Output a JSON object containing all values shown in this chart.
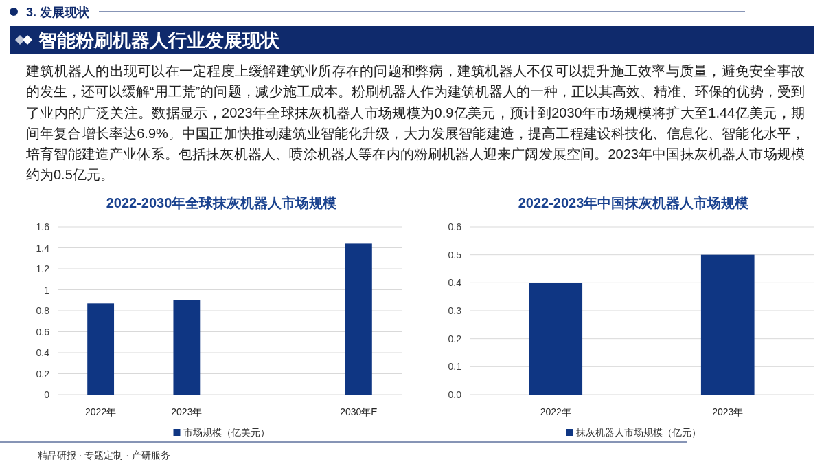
{
  "chart_data": [
    {
      "type": "other",
      "title": "智能粉刷机器人行业发展现状",
      "annotations": [
        "3. 发展现状",
        "建筑机器人的出现可以在一定程度上缓解建筑业所存在的问题和弊病，建筑机器人不仅可以提升施工效率与质量，避免安全事故的发生，还可以缓解“用工荒”的问题，减少施工成本。粉刷机器人作为建筑机器人的一种，正以其高效、精准、环保的优势，受到了业内的广泛关注。数据显示，2023年全球抹灰机器人市场规模为0.9亿美元，预计到2030年市场规模将扩大至1.44亿美元，期间年复合增长率达6.9%。中国正加快推动建筑业智能化升级，大力发展智能建造，提高工程建设科技化、信息化、智能化水平，培育智能建造产业体系。包括抹灰机器人、喷涂机器人等在内的粉刷机器人迎来广阔发展空间。2023年中国抹灰机器人市场规模约为0.5亿元。",
        "精品研报 · 专题定制 · 产研服务"
      ]
    },
    {
      "type": "bar",
      "title": "2022-2030年全球抹灰机器人市场规模",
      "categories": [
        "2022年",
        "2023年",
        null,
        "2030年E"
      ],
      "series": [
        {
          "name": "市场规模（亿美元）",
          "color": "#0f3683",
          "values": [
            0.87,
            0.9,
            null,
            1.44
          ]
        }
      ],
      "ylim": [
        0,
        1.6
      ],
      "yticks": [
        0,
        0.2,
        0.4,
        0.6,
        0.8,
        1,
        1.2,
        1.4,
        1.6
      ],
      "grid": "y",
      "legend": "bottom"
    },
    {
      "type": "bar",
      "title": "2022-2023年中国抹灰机器人市场规模",
      "categories": [
        "2022年",
        "2023年"
      ],
      "series": [
        {
          "name": "抹灰机器人市场规模（亿元）",
          "color": "#0f3683",
          "values": [
            0.4,
            0.5
          ]
        }
      ],
      "ylim": [
        0,
        0.6
      ],
      "yticks": [
        {
          "value": 0,
          "label": "0.0"
        },
        0.1,
        0.2,
        0.3,
        0.4,
        0.5,
        0.6
      ],
      "grid": "y",
      "legend": "bottom"
    }
  ]
}
